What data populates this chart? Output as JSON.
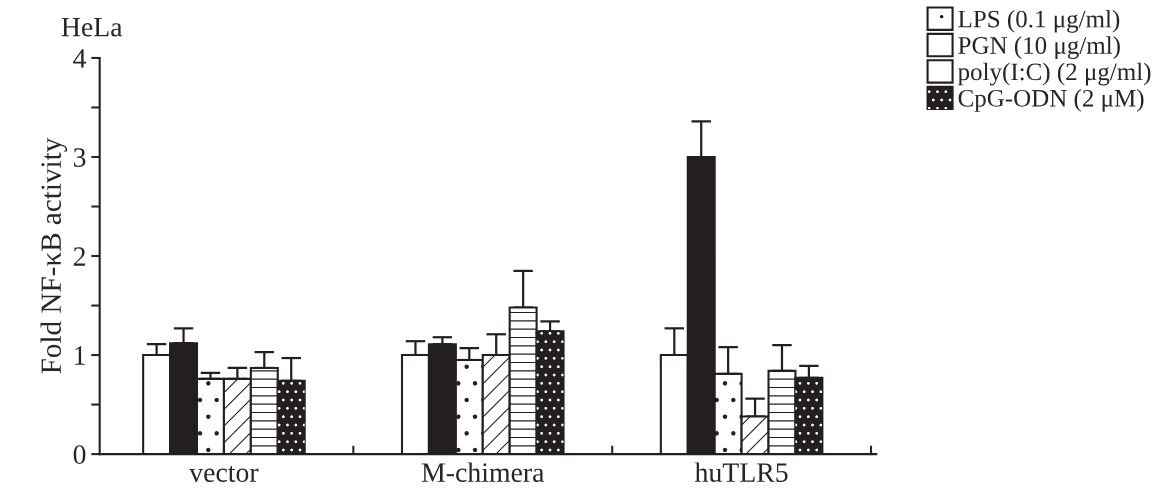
{
  "chart_data": {
    "type": "bar",
    "title": "HeLa",
    "ylabel": "Fold NF-κB activity",
    "categories": [
      "vector",
      "M-chimera",
      "huTLR5"
    ],
    "series": [
      {
        "color": "#ffffff",
        "values": [
          1.0,
          1.0,
          1.0
        ],
        "errors": [
          [
            1.0,
            1.11
          ],
          [
            1.0,
            1.14
          ],
          [
            1.0,
            1.27
          ]
        ]
      },
      {
        "color": "#231f20",
        "values": [
          1.12,
          1.11,
          3.0
        ],
        "errors": [
          [
            1.12,
            1.27
          ],
          [
            1.11,
            1.18
          ],
          [
            3.0,
            3.36
          ]
        ]
      },
      {
        "name": "LPS (0.1 μg/ml)",
        "color": "#ffffff",
        "values": [
          0.76,
          0.95,
          0.81
        ],
        "errors": [
          [
            0.76,
            0.82
          ],
          [
            0.95,
            1.07
          ],
          [
            0.81,
            1.08
          ]
        ]
      },
      {
        "name": "PGN (10 μg/ml)",
        "color": "#ffffff",
        "values": [
          0.76,
          1.0,
          0.38
        ],
        "errors": [
          [
            0.76,
            0.87
          ],
          [
            1.0,
            1.21
          ],
          [
            0.38,
            0.56
          ]
        ]
      },
      {
        "name": "poly(I:C) (2 μg/ml)",
        "color": "#ffffff",
        "values": [
          0.87,
          1.48,
          0.84
        ],
        "errors": [
          [
            0.87,
            1.03
          ],
          [
            1.48,
            1.85
          ],
          [
            0.84,
            1.1
          ]
        ]
      },
      {
        "name": "CpG-ODN (2 μM)",
        "color": "#231f20",
        "values": [
          0.74,
          1.24,
          0.77
        ],
        "errors": [
          [
            0.74,
            0.97
          ],
          [
            1.24,
            1.34
          ],
          [
            0.77,
            0.89
          ]
        ]
      }
    ],
    "ylim": [
      0,
      4
    ],
    "yticks": [
      0,
      {
        "value": 0.5,
        "label": null
      },
      1,
      {
        "value": 1.5,
        "label": null
      },
      2,
      {
        "value": 2.5,
        "label": null
      },
      3,
      {
        "value": 3.5,
        "label": null
      },
      4
    ],
    "grid": false,
    "legend": "top right"
  }
}
